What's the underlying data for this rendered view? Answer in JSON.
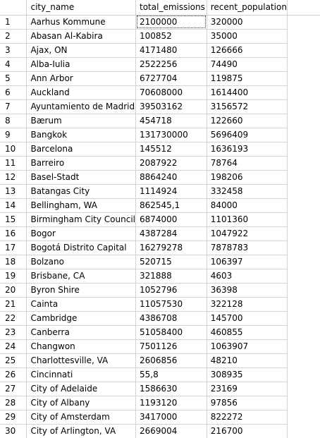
{
  "grid": {
    "columns": [
      "city_name",
      "total_emissions",
      "recent_population"
    ],
    "rows": [
      {
        "n": "1",
        "city": "Aarhus Kommune",
        "emissions": "2100000",
        "population": "320000"
      },
      {
        "n": "2",
        "city": "Abasan Al-Kabira",
        "emissions": "100852",
        "population": "35000"
      },
      {
        "n": "3",
        "city": "Ajax, ON",
        "emissions": "4171480",
        "population": "126666"
      },
      {
        "n": "4",
        "city": "Alba-Iulia",
        "emissions": "2522256",
        "population": "74490"
      },
      {
        "n": "5",
        "city": "Ann Arbor",
        "emissions": "6727704",
        "population": "119875"
      },
      {
        "n": "6",
        "city": "Auckland",
        "emissions": "70608000",
        "population": "1614400"
      },
      {
        "n": "7",
        "city": "Ayuntamiento de Madrid",
        "emissions": "39503162",
        "population": "3156572"
      },
      {
        "n": "8",
        "city": "Bærum",
        "emissions": "454718",
        "population": "122660"
      },
      {
        "n": "9",
        "city": "Bangkok",
        "emissions": "131730000",
        "population": "5696409"
      },
      {
        "n": "10",
        "city": "Barcelona",
        "emissions": "145512",
        "population": "1636193"
      },
      {
        "n": "11",
        "city": "Barreiro",
        "emissions": "2087922",
        "population": "78764"
      },
      {
        "n": "12",
        "city": "Basel-Stadt",
        "emissions": "8864240",
        "population": "198206"
      },
      {
        "n": "13",
        "city": "Batangas City",
        "emissions": "1114924",
        "population": "332458"
      },
      {
        "n": "14",
        "city": "Bellingham, WA",
        "emissions": "862545,1",
        "population": "84000"
      },
      {
        "n": "15",
        "city": "Birmingham City Council",
        "emissions": "6874000",
        "population": "1101360"
      },
      {
        "n": "16",
        "city": "Bogor",
        "emissions": "4387284",
        "population": "1047922"
      },
      {
        "n": "17",
        "city": "Bogotá Distrito Capital",
        "emissions": "16279278",
        "population": "7878783"
      },
      {
        "n": "18",
        "city": "Bolzano",
        "emissions": "520715",
        "population": "106397"
      },
      {
        "n": "19",
        "city": "Brisbane, CA",
        "emissions": "321888",
        "population": "4603"
      },
      {
        "n": "20",
        "city": "Byron Shire",
        "emissions": "1052796",
        "population": "36398"
      },
      {
        "n": "21",
        "city": "Cainta",
        "emissions": "11057530",
        "population": "322128"
      },
      {
        "n": "22",
        "city": "Cambridge",
        "emissions": "4386708",
        "population": "145700"
      },
      {
        "n": "23",
        "city": "Canberra",
        "emissions": "51058400",
        "population": "460855"
      },
      {
        "n": "24",
        "city": "Changwon",
        "emissions": "7501126",
        "population": "1063907"
      },
      {
        "n": "25",
        "city": "Charlottesville, VA",
        "emissions": "2606856",
        "population": "48210"
      },
      {
        "n": "26",
        "city": "Cincinnati",
        "emissions": "55,8",
        "population": "308935"
      },
      {
        "n": "27",
        "city": "City of Adelaide",
        "emissions": "1586630",
        "population": "23169"
      },
      {
        "n": "28",
        "city": "City of Albany",
        "emissions": "1193120",
        "population": "97856"
      },
      {
        "n": "29",
        "city": "City of Amsterdam",
        "emissions": "3417000",
        "population": "822272"
      },
      {
        "n": "30",
        "city": "City of Arlington, VA",
        "emissions": "2669004",
        "population": "216700"
      }
    ]
  }
}
